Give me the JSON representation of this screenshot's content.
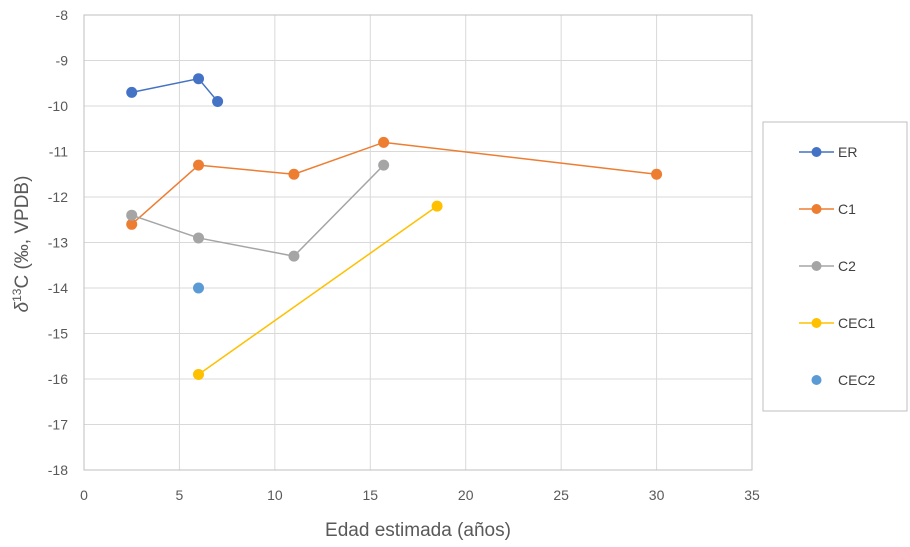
{
  "chart_data": {
    "type": "scatter",
    "xlabel": "Edad estimada (años)",
    "ylabel": "δ13C (‰, VPDB)",
    "ylabel_parts": {
      "prefix": "δ",
      "superscript": "13",
      "suffix": "C (‰, VPDB)"
    },
    "xlim": [
      0,
      35
    ],
    "ylim": [
      -18,
      -8
    ],
    "x_ticks": [
      0,
      5,
      10,
      15,
      20,
      25,
      30,
      35
    ],
    "y_ticks": [
      -18,
      -17,
      -16,
      -15,
      -14,
      -13,
      -12,
      -11,
      -10,
      -9,
      -8
    ],
    "x_tick_labels": [
      "0",
      "5",
      "10",
      "15",
      "20",
      "25",
      "30",
      "35"
    ],
    "y_tick_labels": [
      "-18",
      "-17",
      "-16",
      "-15",
      "-14",
      "-13",
      "-12",
      "-11",
      "-10",
      "-9",
      "-8"
    ],
    "grid": true,
    "legend_position": "right",
    "series": [
      {
        "name": "ER",
        "color": "#4472C4",
        "line": true,
        "points": [
          [
            2.5,
            -9.7
          ],
          [
            6,
            -9.4
          ],
          [
            7,
            -9.9
          ]
        ]
      },
      {
        "name": "C1",
        "color": "#ED7D31",
        "line": true,
        "points": [
          [
            2.5,
            -12.6
          ],
          [
            6,
            -11.3
          ],
          [
            11,
            -11.5
          ],
          [
            15.7,
            -10.8
          ],
          [
            30,
            -11.5
          ]
        ]
      },
      {
        "name": "C2",
        "color": "#A5A5A5",
        "line": true,
        "points": [
          [
            2.5,
            -12.4
          ],
          [
            6,
            -12.9
          ],
          [
            11,
            -13.3
          ],
          [
            15.7,
            -11.3
          ]
        ]
      },
      {
        "name": "CEC1",
        "color": "#FFC000",
        "line": true,
        "points": [
          [
            6,
            -15.9
          ],
          [
            18.5,
            -12.2
          ]
        ]
      },
      {
        "name": "CEC2",
        "color": "#5B9BD5",
        "line": false,
        "points": [
          [
            6,
            -14.0
          ]
        ]
      }
    ]
  }
}
